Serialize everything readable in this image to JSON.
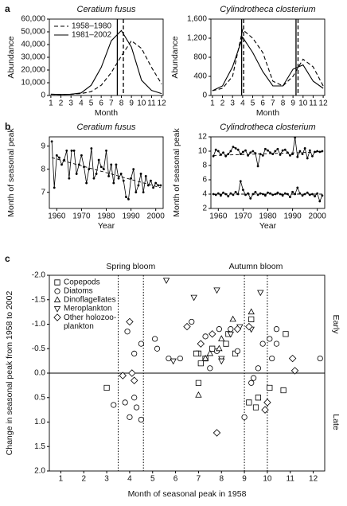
{
  "chart_data": [
    {
      "type": "line",
      "panel": "a",
      "title": "Ceratium fusus",
      "xlabel": "Month",
      "ylabel": "Abundance",
      "x": [
        1,
        2,
        3,
        4,
        5,
        6,
        7,
        8,
        9,
        10,
        11,
        12
      ],
      "xlim": [
        0.85,
        12.15
      ],
      "xticks": [
        1,
        2,
        3,
        4,
        5,
        6,
        7,
        8,
        9,
        10,
        11,
        12
      ],
      "ylim": [
        0,
        60000
      ],
      "yticks": [
        0,
        {
          "value": 10000,
          "label": "10,000"
        },
        {
          "value": 20000,
          "label": "20,000"
        },
        {
          "value": 30000,
          "label": "30,000"
        },
        {
          "value": 40000,
          "label": "40,000"
        },
        {
          "value": 50000,
          "label": "50,000"
        },
        {
          "value": 60000,
          "label": "60,000"
        }
      ],
      "legend": "upper left",
      "series": [
        {
          "name": "1958–1980",
          "color": "#000000",
          "style": "dashed",
          "values": [
            1000,
            800,
            1000,
            1500,
            3000,
            8000,
            18000,
            31000,
            43000,
            37000,
            22000,
            9000
          ]
        },
        {
          "name": "1981–2002",
          "color": "#000000",
          "style": "solid",
          "values": [
            1000,
            800,
            1000,
            2000,
            8000,
            22000,
            43000,
            51000,
            38000,
            12000,
            4000,
            1500
          ]
        }
      ],
      "vlines": [
        {
          "value": 7.6,
          "style": "solid"
        },
        {
          "value": 8.2,
          "style": "dashed"
        }
      ]
    },
    {
      "type": "line",
      "title": "Cylindrotheca closterium",
      "xlabel": "Month",
      "ylabel": "Abundance",
      "x": [
        1,
        2,
        3,
        4,
        5,
        6,
        7,
        8,
        9,
        10,
        11,
        12
      ],
      "xlim": [
        0.85,
        12.15
      ],
      "xticks": [
        1,
        2,
        3,
        4,
        5,
        6,
        7,
        8,
        9,
        10,
        11,
        12
      ],
      "ylim": [
        0,
        1600
      ],
      "yticks": [
        0,
        400,
        800,
        {
          "value": 1200,
          "label": "1,200"
        },
        {
          "value": 1600,
          "label": "1,600"
        }
      ],
      "series": [
        {
          "color": "#000000",
          "style": "dashed",
          "values": [
            100,
            150,
            400,
            1380,
            1200,
            900,
            300,
            200,
            400,
            760,
            600,
            200
          ]
        },
        {
          "color": "#000000",
          "style": "solid",
          "values": [
            100,
            200,
            600,
            1220,
            900,
            500,
            200,
            200,
            550,
            640,
            300,
            150
          ]
        }
      ],
      "vlines": [
        {
          "value": 3.9,
          "style": "solid"
        },
        {
          "value": 4.1,
          "style": "dashed"
        },
        {
          "value": 9.3,
          "style": "solid"
        },
        {
          "value": 9.5,
          "style": "dashed"
        }
      ]
    },
    {
      "type": "line",
      "panel": "b",
      "title": "Ceratium fusus",
      "xlabel": "Year",
      "ylabel": "Month of seasonal peak",
      "x": [
        1958,
        1959,
        1960,
        1961,
        1962,
        1963,
        1964,
        1965,
        1966,
        1967,
        1968,
        1969,
        1970,
        1971,
        1972,
        1973,
        1974,
        1975,
        1976,
        1977,
        1978,
        1979,
        1980,
        1981,
        1982,
        1983,
        1984,
        1985,
        1986,
        1987,
        1988,
        1989,
        1990,
        1991,
        1992,
        1993,
        1994,
        1995,
        1996,
        1997,
        1998,
        1999,
        2000,
        2001,
        2002
      ],
      "xlim": [
        1957,
        2003
      ],
      "xticks": [
        1960,
        1970,
        1980,
        1990,
        2000
      ],
      "ylim": [
        6.3,
        9.4
      ],
      "yticks": [
        7,
        8,
        9
      ],
      "series": [
        {
          "color": "#000000",
          "style": "solid",
          "markers": true,
          "values": [
            9.2,
            7.2,
            8.6,
            8.5,
            8.2,
            8.4,
            8.8,
            7.6,
            8.8,
            8.8,
            7.8,
            8.2,
            8.6,
            8.1,
            7.4,
            8.0,
            8.9,
            7.6,
            7.8,
            8.4,
            8.1,
            8.0,
            8.8,
            7.7,
            8.2,
            7.4,
            8.2,
            7.6,
            7.8,
            7.5,
            6.8,
            6.7,
            7.6,
            8.0,
            7.0,
            7.3,
            7.8,
            7.0,
            7.7,
            7.3,
            7.5,
            7.2,
            7.4,
            7.3,
            7.3
          ]
        }
      ],
      "trends": [
        {
          "x": [
            1958,
            2002
          ],
          "values": [
            8.5,
            7.2
          ]
        }
      ]
    },
    {
      "type": "line",
      "title": "Cylindrotheca closterium",
      "xlabel": "Year",
      "ylabel": "Month of seasonal peak",
      "x": [
        1958,
        1959,
        1960,
        1961,
        1962,
        1963,
        1964,
        1965,
        1966,
        1967,
        1968,
        1969,
        1970,
        1971,
        1972,
        1973,
        1974,
        1975,
        1976,
        1977,
        1978,
        1979,
        1980,
        1981,
        1982,
        1983,
        1984,
        1985,
        1986,
        1987,
        1988,
        1989,
        1990,
        1991,
        1992,
        1993,
        1994,
        1995,
        1996,
        1997,
        1998,
        1999,
        2000,
        2001,
        2002
      ],
      "xlim": [
        1957,
        2003
      ],
      "xticks": [
        1960,
        1970,
        1980,
        1990,
        2000
      ],
      "ylim": [
        2,
        12
      ],
      "yticks": [
        2,
        4,
        6,
        8,
        10,
        12
      ],
      "series": [
        {
          "color": "#000000",
          "style": "solid",
          "markers": true,
          "values": [
            9.3,
            10.2,
            10.0,
            9.5,
            9.8,
            9.3,
            9.6,
            10.0,
            10.6,
            10.4,
            10.2,
            9.6,
            9.9,
            10.1,
            9.4,
            9.8,
            10.0,
            9.7,
            7.9,
            9.6,
            9.4,
            10.3,
            10.1,
            9.8,
            9.6,
            10.0,
            10.3,
            9.5,
            10.1,
            10.2,
            9.8,
            9.4,
            9.6,
            11.9,
            9.2,
            10.0,
            9.6,
            10.4,
            9.0,
            10.1,
            9.3,
            9.9,
            10.0,
            9.9,
            10.0
          ]
        },
        {
          "color": "#000000",
          "style": "solid",
          "markers": true,
          "values": [
            4.0,
            3.9,
            4.1,
            3.8,
            4.2,
            4.0,
            3.7,
            4.1,
            3.9,
            4.3,
            4.0,
            5.8,
            4.6,
            3.9,
            4.1,
            3.4,
            4.0,
            4.3,
            3.9,
            4.1,
            4.0,
            3.8,
            4.2,
            4.1,
            3.9,
            4.0,
            4.2,
            4.0,
            3.8,
            4.1,
            4.0,
            3.6,
            4.3,
            4.0,
            4.9,
            4.1,
            3.8,
            4.0,
            4.2,
            3.9,
            4.0,
            3.7,
            4.1,
            3.0,
            3.8
          ]
        }
      ],
      "trends": [
        {
          "x": [
            1958,
            2002
          ],
          "values": [
            9.4,
            9.9
          ]
        },
        {
          "x": [
            1958,
            2002
          ],
          "values": [
            4.0,
            4.0
          ]
        }
      ]
    },
    {
      "type": "scatter",
      "panel": "c",
      "xlabel": "Month of seasonal peak in 1958",
      "ylabel": "Change in seasonal peak from 1958 to 2002",
      "xlim": [
        0.5,
        12.5
      ],
      "xticks": [
        1,
        2,
        3,
        4,
        5,
        6,
        7,
        8,
        9,
        10,
        11,
        12
      ],
      "ylim": [
        2.0,
        -2.0
      ],
      "yticks": [
        {
          "value": -2.0,
          "label": "-2.0"
        },
        -1.5,
        {
          "value": -1.0,
          "label": "-1.0"
        },
        -0.5,
        {
          "value": 0,
          "label": "0.0"
        },
        0.5,
        {
          "value": 1.0,
          "label": "1.0"
        },
        1.5,
        {
          "value": 2.0,
          "label": "2.0"
        }
      ],
      "zero_line": true,
      "legend": "upper left",
      "vlines": [
        {
          "value": 3.5,
          "style": "dotted"
        },
        {
          "value": 4.6,
          "style": "dotted"
        },
        {
          "value": 9.0,
          "style": "dotted"
        },
        {
          "value": 10.0,
          "style": "dotted"
        }
      ],
      "annotations": [
        "Spring bloom",
        "Autumn bloom"
      ],
      "side_labels": [
        "Early",
        "Late"
      ],
      "series": [
        {
          "name": "Copepods",
          "marker": "square",
          "color": "#000000",
          "x": [
            3.0,
            7.0,
            7.0,
            7.3,
            7.6,
            7.1,
            8.2,
            8.3,
            8.6,
            9.2,
            9.3,
            9.6,
            9.5,
            10.1,
            10.7,
            10.8,
            6.9
          ],
          "values": [
            0.3,
            -0.4,
            0.2,
            -0.3,
            -0.5,
            -0.2,
            -0.6,
            -0.8,
            -0.4,
            0.6,
            -1.1,
            0.5,
            0.7,
            0.3,
            0.35,
            -0.8,
            -0.4
          ]
        },
        {
          "name": "Diatoms",
          "marker": "circle",
          "color": "#000000",
          "x": [
            3.3,
            3.8,
            4.2,
            4.0,
            4.3,
            4.5,
            4.2,
            3.9,
            4.5,
            5.1,
            5.2,
            5.7,
            6.2,
            6.7,
            7.3,
            7.5,
            7.8,
            7.9,
            8.4,
            8.7,
            9.0,
            9.3,
            9.4,
            9.6,
            9.8,
            10.1,
            10.4,
            10.4,
            12.3,
            10.2
          ],
          "values": [
            0.65,
            0.6,
            0.5,
            0.9,
            0.7,
            0.95,
            -0.4,
            -0.85,
            -0.6,
            -0.7,
            -0.5,
            -0.3,
            -0.3,
            -1.05,
            -0.75,
            -0.1,
            -0.45,
            -0.9,
            -0.9,
            -0.45,
            0.9,
            0.2,
            0.1,
            -0.1,
            -0.6,
            -0.7,
            -0.6,
            -0.9,
            -0.3,
            -0.3
          ]
        },
        {
          "name": "Dinoflagellates",
          "marker": "triangle-up",
          "color": "#000000",
          "x": [
            7.0,
            7.3,
            7.5,
            8.5,
            8.0,
            9.3,
            7.9
          ],
          "values": [
            0.45,
            -0.3,
            -0.4,
            -1.1,
            -0.7,
            -1.25,
            -0.5
          ]
        },
        {
          "name": "Meroplankton",
          "marker": "triangle-down",
          "color": "#000000",
          "x": [
            5.6,
            5.9,
            6.8,
            7.8,
            8.4,
            8.0,
            9.3,
            8.8,
            9.7,
            8.0
          ],
          "values": [
            -1.9,
            -0.25,
            -1.55,
            -1.7,
            -0.8,
            -0.3,
            -0.9,
            -0.95,
            -1.65,
            -0.25
          ]
        },
        {
          "name": "Other holozoo- plankton",
          "marker": "diamond",
          "color": "#000000",
          "x": [
            3.7,
            4.0,
            4.1,
            4.2,
            6.5,
            7.1,
            7.6,
            7.8,
            8.7,
            9.9,
            10.0,
            11.1,
            11.2,
            9.2
          ],
          "values": [
            0.05,
            -1.05,
            0.0,
            0.15,
            -0.95,
            -0.6,
            -0.8,
            1.22,
            -0.9,
            0.75,
            0.6,
            -0.3,
            -0.05,
            -0.95
          ]
        }
      ]
    }
  ]
}
